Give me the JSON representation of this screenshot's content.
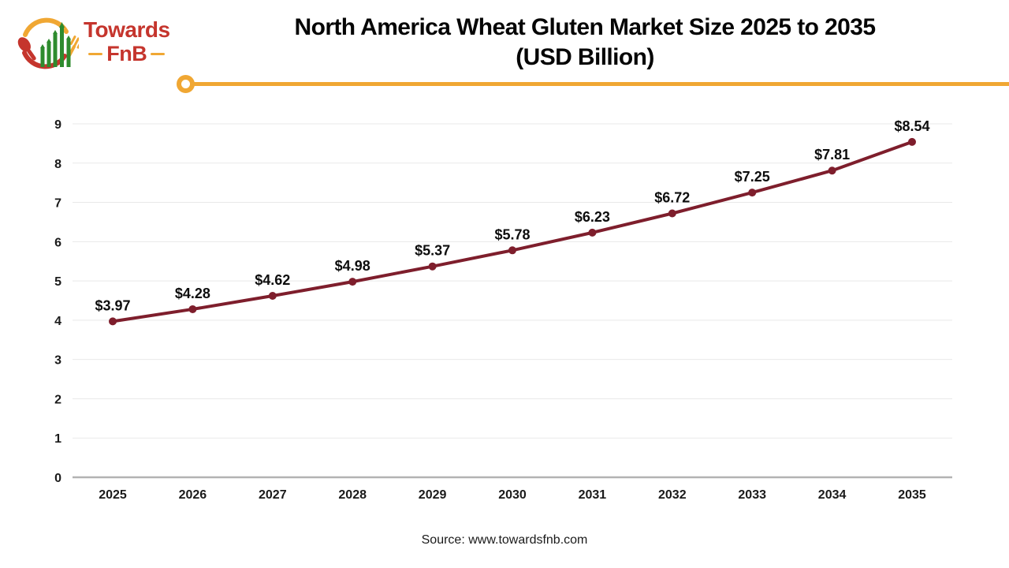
{
  "logo": {
    "brand_top": "Towards",
    "brand_bottom": "FnB",
    "colors": {
      "red": "#c5352d",
      "yellow": "#f0a733",
      "green": "#2e8b2e"
    }
  },
  "header": {
    "title_line1": "North America Wheat Gluten Market Size 2025 to 2035",
    "title_line2": "(USD Billion)",
    "accent_color": "#f0a733"
  },
  "chart_data": {
    "type": "line",
    "title": "North America Wheat Gluten Market Size 2025 to 2035 (USD Billion)",
    "categories": [
      "2025",
      "2026",
      "2027",
      "2028",
      "2029",
      "2030",
      "2031",
      "2032",
      "2033",
      "2034",
      "2035"
    ],
    "values": [
      3.97,
      4.28,
      4.62,
      4.98,
      5.37,
      5.78,
      6.23,
      6.72,
      7.25,
      7.81,
      8.54
    ],
    "point_labels": [
      "$3.97",
      "$4.28",
      "$4.62",
      "$4.98",
      "$5.37",
      "$5.78",
      "$6.23",
      "$6.72",
      "$7.25",
      "$7.81",
      "$8.54"
    ],
    "xlabel": "",
    "ylabel": "",
    "ylim": [
      0,
      9
    ],
    "ytick_step": 1,
    "grid": true,
    "legend": "none",
    "line_color": "#7e1e2c",
    "marker": "circle"
  },
  "footer": {
    "source_text": "Source: www.towardsfnb.com"
  }
}
